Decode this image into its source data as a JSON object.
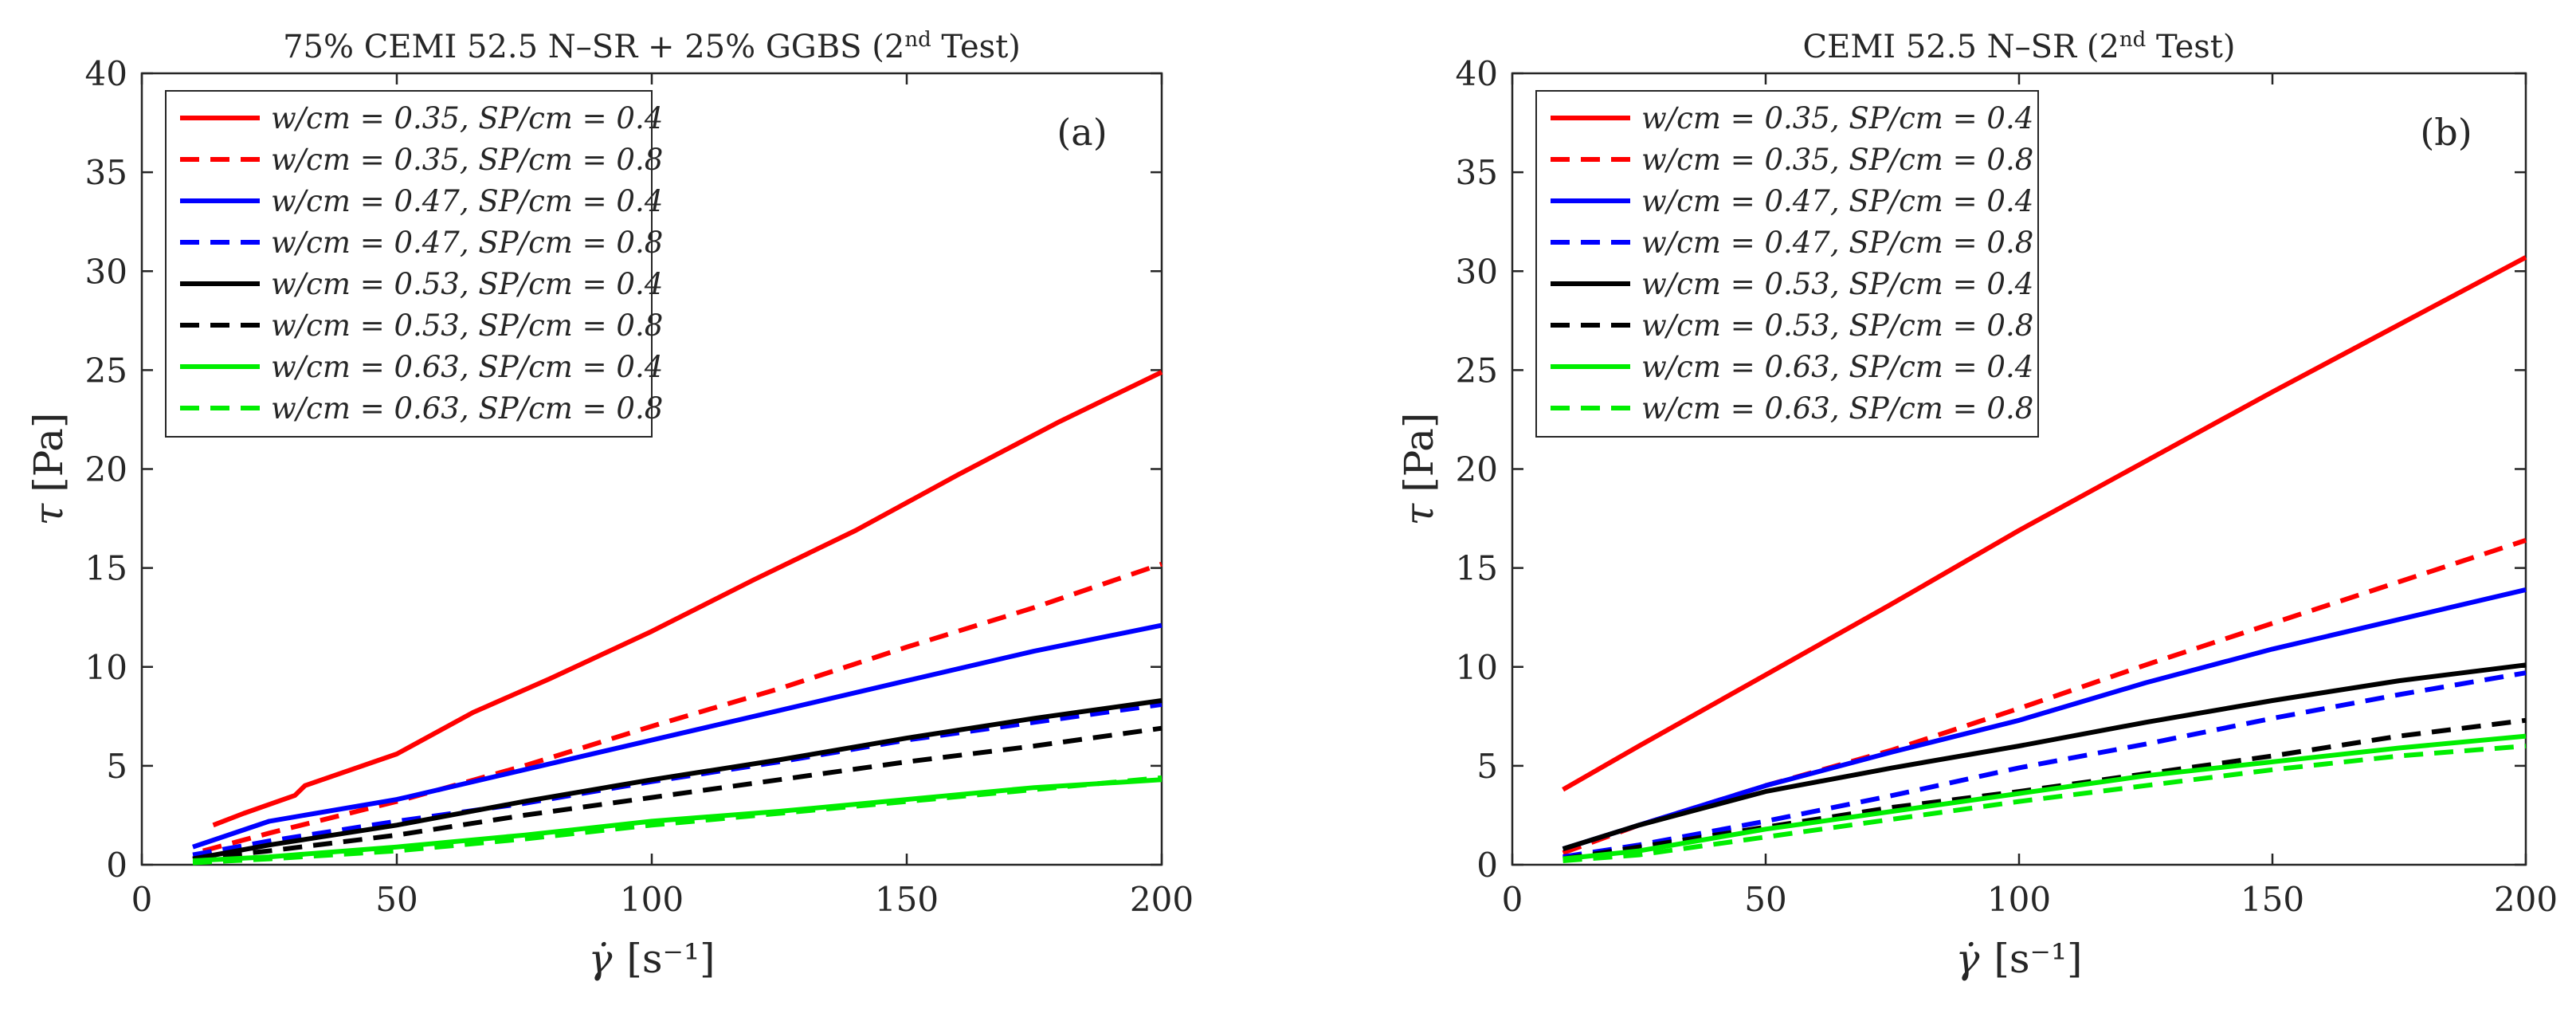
{
  "chart_data": [
    {
      "type": "line",
      "panel_label": "(a)",
      "title_prefix": "75% CEMI 52.5 N–SR + 25% GGBS (2",
      "title_superscript": "nd",
      "title_suffix": " Test)",
      "xlabel_symbol": "γ̇",
      "xlabel_unit": "[s⁻¹]",
      "ylabel_symbol": "τ",
      "ylabel_unit": "[Pa]",
      "xlim": [
        0,
        200
      ],
      "ylim": [
        0,
        40
      ],
      "xticks": [
        0,
        50,
        100,
        150,
        200
      ],
      "yticks": [
        0,
        5,
        10,
        15,
        20,
        25,
        30,
        35,
        40
      ],
      "legend_position": "top-left",
      "series": [
        {
          "name": "w/cm = 0.35, SP/cm = 0.4",
          "color": "#ff0000",
          "dash": "solid",
          "x": [
            14,
            20,
            30,
            32,
            50,
            65,
            80,
            100,
            120,
            140,
            160,
            180,
            200
          ],
          "y": [
            2.0,
            2.6,
            3.5,
            4.0,
            5.6,
            7.7,
            9.4,
            11.8,
            14.4,
            16.9,
            19.7,
            22.4,
            24.9
          ]
        },
        {
          "name": "w/cm = 0.35, SP/cm = 0.8",
          "color": "#ff0000",
          "dash": "dashed",
          "x": [
            12,
            25,
            50,
            75,
            100,
            125,
            150,
            175,
            200
          ],
          "y": [
            0.7,
            1.6,
            3.2,
            5.0,
            7.0,
            8.9,
            11.0,
            13.0,
            15.2
          ]
        },
        {
          "name": "w/cm = 0.47, SP/cm = 0.4",
          "color": "#0000ff",
          "dash": "solid",
          "x": [
            10,
            25,
            50,
            75,
            100,
            125,
            150,
            175,
            200
          ],
          "y": [
            0.9,
            2.2,
            3.3,
            4.8,
            6.3,
            7.8,
            9.3,
            10.8,
            12.1
          ]
        },
        {
          "name": "w/cm = 0.47, SP/cm = 0.8",
          "color": "#0000ff",
          "dash": "dashed",
          "x": [
            10,
            25,
            50,
            75,
            100,
            125,
            150,
            175,
            200
          ],
          "y": [
            0.5,
            1.2,
            2.2,
            3.1,
            4.2,
            5.2,
            6.3,
            7.2,
            8.1
          ]
        },
        {
          "name": "w/cm = 0.53, SP/cm = 0.4",
          "color": "#000000",
          "dash": "solid",
          "x": [
            10,
            25,
            50,
            75,
            100,
            125,
            150,
            175,
            200
          ],
          "y": [
            0.3,
            1.0,
            2.0,
            3.2,
            4.3,
            5.3,
            6.4,
            7.4,
            8.3
          ]
        },
        {
          "name": "w/cm = 0.53, SP/cm = 0.8",
          "color": "#000000",
          "dash": "dashed",
          "x": [
            10,
            25,
            50,
            75,
            100,
            125,
            150,
            175,
            200
          ],
          "y": [
            0.3,
            0.7,
            1.5,
            2.5,
            3.4,
            4.3,
            5.2,
            6.0,
            6.9
          ]
        },
        {
          "name": "w/cm = 0.63, SP/cm = 0.4",
          "color": "#00ee00",
          "dash": "solid",
          "x": [
            10,
            25,
            50,
            75,
            100,
            125,
            150,
            175,
            200
          ],
          "y": [
            0.2,
            0.4,
            0.9,
            1.5,
            2.2,
            2.7,
            3.3,
            3.9,
            4.3
          ]
        },
        {
          "name": "w/cm = 0.63, SP/cm = 0.8",
          "color": "#00ee00",
          "dash": "dashed",
          "x": [
            10,
            25,
            50,
            75,
            100,
            125,
            150,
            175,
            200
          ],
          "y": [
            0.1,
            0.3,
            0.7,
            1.3,
            2.0,
            2.6,
            3.2,
            3.8,
            4.4
          ]
        }
      ]
    },
    {
      "type": "line",
      "panel_label": "(b)",
      "title_prefix": "CEMI 52.5 N–SR (2",
      "title_superscript": "nd",
      "title_suffix": " Test)",
      "xlabel_symbol": "γ̇",
      "xlabel_unit": "[s⁻¹]",
      "ylabel_symbol": "τ",
      "ylabel_unit": "[Pa]",
      "xlim": [
        0,
        200
      ],
      "ylim": [
        0,
        40
      ],
      "xticks": [
        0,
        50,
        100,
        150,
        200
      ],
      "yticks": [
        0,
        5,
        10,
        15,
        20,
        25,
        30,
        35,
        40
      ],
      "legend_position": "top-left",
      "series": [
        {
          "name": "w/cm = 0.35, SP/cm = 0.4",
          "color": "#ff0000",
          "dash": "solid",
          "x": [
            10,
            25,
            50,
            75,
            100,
            125,
            150,
            175,
            200
          ],
          "y": [
            3.8,
            6.0,
            9.6,
            13.2,
            16.9,
            20.4,
            23.9,
            27.3,
            30.7
          ]
        },
        {
          "name": "w/cm = 0.35, SP/cm = 0.8",
          "color": "#ff0000",
          "dash": "dashed",
          "x": [
            10,
            25,
            50,
            75,
            100,
            125,
            150,
            175,
            200
          ],
          "y": [
            0.6,
            2.0,
            4.0,
            5.8,
            7.9,
            10.1,
            12.2,
            14.3,
            16.4
          ]
        },
        {
          "name": "w/cm = 0.47, SP/cm = 0.4",
          "color": "#0000ff",
          "dash": "solid",
          "x": [
            10,
            25,
            50,
            75,
            100,
            125,
            150,
            175,
            200
          ],
          "y": [
            0.8,
            2.0,
            4.0,
            5.7,
            7.3,
            9.2,
            10.9,
            12.4,
            13.9
          ]
        },
        {
          "name": "w/cm = 0.47, SP/cm = 0.8",
          "color": "#0000ff",
          "dash": "dashed",
          "x": [
            10,
            25,
            50,
            75,
            100,
            125,
            150,
            175,
            200
          ],
          "y": [
            0.4,
            1.0,
            2.2,
            3.5,
            4.9,
            6.1,
            7.4,
            8.6,
            9.7
          ]
        },
        {
          "name": "w/cm = 0.53, SP/cm = 0.4",
          "color": "#000000",
          "dash": "solid",
          "x": [
            10,
            25,
            50,
            75,
            100,
            125,
            150,
            175,
            200
          ],
          "y": [
            0.8,
            2.0,
            3.7,
            4.9,
            6.0,
            7.2,
            8.3,
            9.3,
            10.1
          ]
        },
        {
          "name": "w/cm = 0.53, SP/cm = 0.8",
          "color": "#000000",
          "dash": "dashed",
          "x": [
            10,
            25,
            50,
            75,
            100,
            125,
            150,
            175,
            200
          ],
          "y": [
            0.3,
            0.9,
            1.9,
            2.9,
            3.7,
            4.6,
            5.5,
            6.5,
            7.3
          ]
        },
        {
          "name": "w/cm = 0.63, SP/cm = 0.4",
          "color": "#00ee00",
          "dash": "solid",
          "x": [
            10,
            25,
            50,
            75,
            100,
            125,
            150,
            175,
            200
          ],
          "y": [
            0.3,
            0.7,
            1.8,
            2.7,
            3.6,
            4.5,
            5.2,
            5.9,
            6.5
          ]
        },
        {
          "name": "w/cm = 0.63, SP/cm = 0.8",
          "color": "#00ee00",
          "dash": "dashed",
          "x": [
            10,
            25,
            50,
            75,
            100,
            125,
            150,
            175,
            200
          ],
          "y": [
            0.2,
            0.5,
            1.4,
            2.3,
            3.2,
            4.0,
            4.8,
            5.5,
            6.0
          ]
        }
      ]
    }
  ]
}
